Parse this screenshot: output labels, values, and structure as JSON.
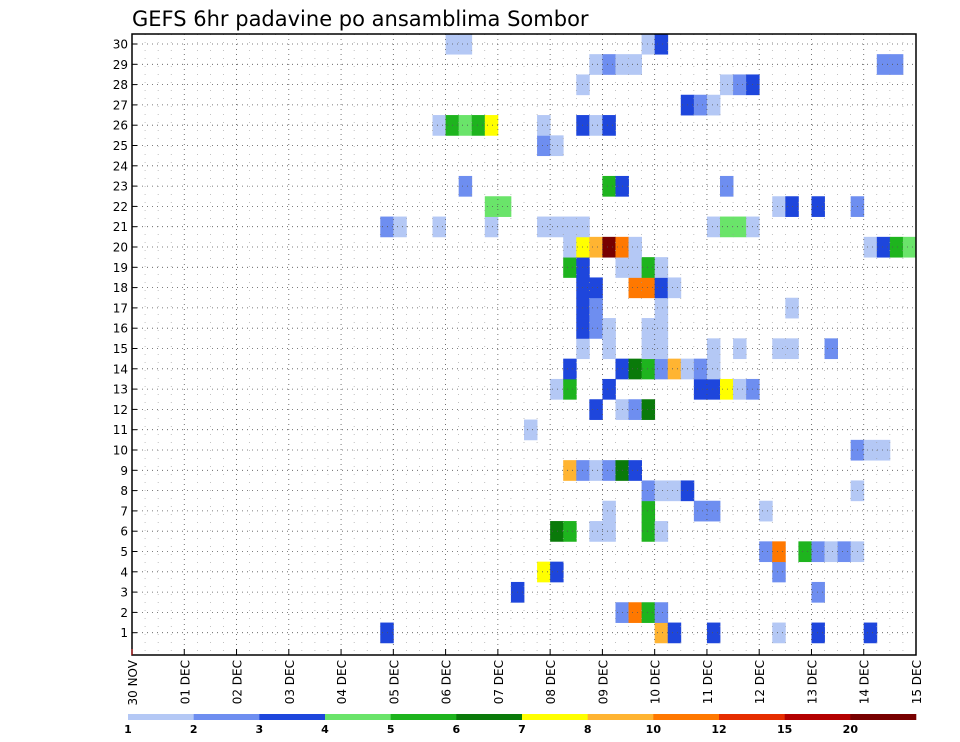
{
  "chart_data": {
    "type": "heatmap",
    "title": "GEFS 6hr padavine po ansamblima Sombor",
    "xlabel": "",
    "ylabel": "",
    "x_labels": [
      "30 NOV",
      "01 DEC",
      "02 DEC",
      "03 DEC",
      "04 DEC",
      "05 DEC",
      "06 DEC",
      "07 DEC",
      "08 DEC",
      "09 DEC",
      "10 DEC",
      "11 DEC",
      "12 DEC",
      "13 DEC",
      "14 DEC",
      "15 DEC"
    ],
    "xlim": [
      0,
      60
    ],
    "y_labels": [
      "1",
      "2",
      "3",
      "4",
      "5",
      "6",
      "7",
      "8",
      "9",
      "10",
      "11",
      "12",
      "13",
      "14",
      "15",
      "16",
      "17",
      "18",
      "19",
      "20",
      "21",
      "22",
      "23",
      "24",
      "25",
      "26",
      "27",
      "28",
      "29",
      "30"
    ],
    "ylim": [
      0,
      30
    ],
    "grid": true,
    "colorbar": {
      "labels": [
        "1",
        "2",
        "3",
        "4",
        "5",
        "6",
        "7",
        "8",
        "10",
        "12",
        "15",
        "20"
      ],
      "colors": [
        "#b4c8f5",
        "#6e8ef0",
        "#1e46dc",
        "#6ae46a",
        "#1eb41e",
        "#0a7a0a",
        "#ffff00",
        "#ffb432",
        "#ff7800",
        "#e62d00",
        "#b40000",
        "#780000"
      ]
    },
    "cells_format": "[member, time_step, color_index]",
    "cells": [
      [
        1,
        50,
        0
      ],
      [
        1,
        20,
        2
      ],
      [
        1,
        41,
        7
      ],
      [
        1,
        42,
        2
      ],
      [
        1,
        45,
        2
      ],
      [
        1,
        53,
        2
      ],
      [
        1,
        57,
        2
      ],
      [
        2,
        38,
        1
      ],
      [
        2,
        39,
        8
      ],
      [
        2,
        40,
        4
      ],
      [
        2,
        41,
        1
      ],
      [
        3,
        30,
        2
      ],
      [
        3,
        53,
        1
      ],
      [
        4,
        32,
        6
      ],
      [
        4,
        33,
        2
      ],
      [
        4,
        50,
        1
      ],
      [
        5,
        49,
        1
      ],
      [
        5,
        50,
        8
      ],
      [
        5,
        52,
        4
      ],
      [
        5,
        53,
        1
      ],
      [
        5,
        54,
        0
      ],
      [
        5,
        55,
        1
      ],
      [
        5,
        56,
        0
      ],
      [
        6,
        33,
        5
      ],
      [
        6,
        34,
        4
      ],
      [
        6,
        36,
        0
      ],
      [
        6,
        37,
        0
      ],
      [
        6,
        40,
        4
      ],
      [
        6,
        41,
        0
      ],
      [
        7,
        37,
        0
      ],
      [
        7,
        40,
        4
      ],
      [
        7,
        44,
        1
      ],
      [
        7,
        45,
        1
      ],
      [
        7,
        49,
        0
      ],
      [
        8,
        40,
        1
      ],
      [
        8,
        41,
        0
      ],
      [
        8,
        42,
        0
      ],
      [
        8,
        43,
        2
      ],
      [
        8,
        56,
        0
      ],
      [
        9,
        34,
        7
      ],
      [
        9,
        35,
        1
      ],
      [
        9,
        36,
        0
      ],
      [
        9,
        37,
        1
      ],
      [
        9,
        38,
        5
      ],
      [
        9,
        39,
        2
      ],
      [
        10,
        56,
        1
      ],
      [
        10,
        57,
        0
      ],
      [
        10,
        58,
        0
      ],
      [
        11,
        31,
        0
      ],
      [
        12,
        36,
        2
      ],
      [
        12,
        38,
        0
      ],
      [
        12,
        39,
        1
      ],
      [
        12,
        40,
        5
      ],
      [
        13,
        33,
        0
      ],
      [
        13,
        34,
        4
      ],
      [
        13,
        37,
        2
      ],
      [
        13,
        44,
        2
      ],
      [
        13,
        45,
        2
      ],
      [
        13,
        46,
        6
      ],
      [
        13,
        47,
        0
      ],
      [
        13,
        48,
        1
      ],
      [
        14,
        34,
        2
      ],
      [
        14,
        38,
        2
      ],
      [
        14,
        39,
        5
      ],
      [
        14,
        40,
        4
      ],
      [
        14,
        41,
        1
      ],
      [
        14,
        42,
        7
      ],
      [
        14,
        43,
        0
      ],
      [
        14,
        44,
        1
      ],
      [
        14,
        45,
        0
      ],
      [
        15,
        35,
        0
      ],
      [
        15,
        37,
        0
      ],
      [
        15,
        40,
        0
      ],
      [
        15,
        41,
        0
      ],
      [
        15,
        45,
        0
      ],
      [
        15,
        47,
        0
      ],
      [
        15,
        50,
        0
      ],
      [
        15,
        51,
        0
      ],
      [
        15,
        54,
        1
      ],
      [
        16,
        35,
        2
      ],
      [
        16,
        36,
        1
      ],
      [
        16,
        37,
        0
      ],
      [
        16,
        40,
        0
      ],
      [
        16,
        41,
        0
      ],
      [
        17,
        35,
        2
      ],
      [
        17,
        36,
        1
      ],
      [
        17,
        41,
        0
      ],
      [
        17,
        51,
        0
      ],
      [
        18,
        35,
        2
      ],
      [
        18,
        36,
        2
      ],
      [
        18,
        39,
        8
      ],
      [
        18,
        40,
        8
      ],
      [
        18,
        41,
        2
      ],
      [
        18,
        42,
        0
      ],
      [
        19,
        34,
        4
      ],
      [
        19,
        35,
        2
      ],
      [
        19,
        38,
        0
      ],
      [
        19,
        39,
        0
      ],
      [
        19,
        40,
        4
      ],
      [
        19,
        41,
        0
      ],
      [
        20,
        34,
        0
      ],
      [
        20,
        35,
        6
      ],
      [
        20,
        36,
        7
      ],
      [
        20,
        37,
        11
      ],
      [
        20,
        38,
        8
      ],
      [
        20,
        39,
        0
      ],
      [
        20,
        57,
        0
      ],
      [
        20,
        58,
        2
      ],
      [
        20,
        59,
        4
      ],
      [
        20,
        60,
        3
      ],
      [
        21,
        20,
        1
      ],
      [
        21,
        21,
        0
      ],
      [
        21,
        24,
        0
      ],
      [
        21,
        28,
        0
      ],
      [
        21,
        32,
        0
      ],
      [
        21,
        33,
        0
      ],
      [
        21,
        34,
        0
      ],
      [
        21,
        35,
        0
      ],
      [
        21,
        45,
        0
      ],
      [
        21,
        46,
        3
      ],
      [
        21,
        47,
        3
      ],
      [
        21,
        48,
        0
      ],
      [
        22,
        28,
        3
      ],
      [
        22,
        29,
        3
      ],
      [
        22,
        50,
        0
      ],
      [
        22,
        51,
        2
      ],
      [
        22,
        53,
        2
      ],
      [
        22,
        56,
        1
      ],
      [
        23,
        26,
        1
      ],
      [
        23,
        37,
        4
      ],
      [
        23,
        38,
        2
      ],
      [
        23,
        46,
        1
      ],
      [
        25,
        32,
        1
      ],
      [
        25,
        33,
        0
      ],
      [
        26,
        24,
        0
      ],
      [
        26,
        25,
        4
      ],
      [
        26,
        26,
        3
      ],
      [
        26,
        27,
        4
      ],
      [
        26,
        28,
        6
      ],
      [
        26,
        32,
        0
      ],
      [
        26,
        35,
        2
      ],
      [
        26,
        36,
        0
      ],
      [
        26,
        37,
        2
      ],
      [
        27,
        43,
        2
      ],
      [
        27,
        44,
        1
      ],
      [
        27,
        45,
        0
      ],
      [
        28,
        35,
        0
      ],
      [
        28,
        46,
        0
      ],
      [
        28,
        47,
        1
      ],
      [
        28,
        48,
        2
      ],
      [
        29,
        36,
        0
      ],
      [
        29,
        37,
        1
      ],
      [
        29,
        38,
        0
      ],
      [
        29,
        39,
        0
      ],
      [
        29,
        58,
        1
      ],
      [
        29,
        59,
        1
      ],
      [
        30,
        25,
        0
      ],
      [
        30,
        26,
        0
      ],
      [
        30,
        40,
        0
      ],
      [
        30,
        41,
        2
      ]
    ]
  }
}
